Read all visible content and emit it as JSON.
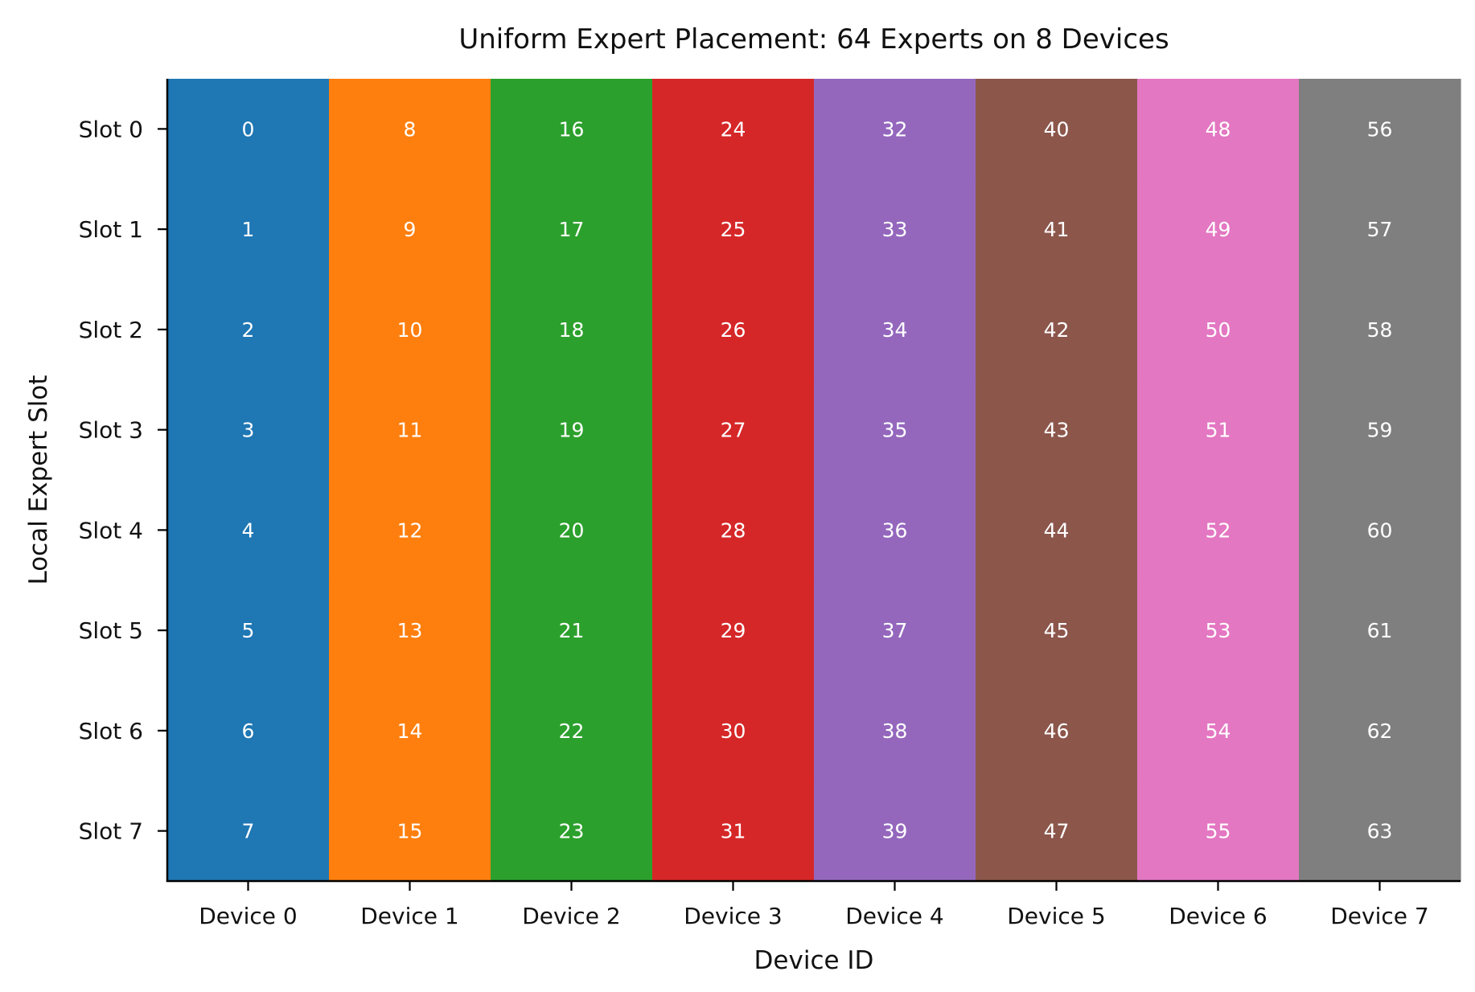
{
  "chart_data": {
    "type": "heatmap",
    "title": "Uniform Expert Placement: 64 Experts on 8 Devices",
    "xlabel": "Device ID",
    "ylabel": "Local Expert Slot",
    "x_categories": [
      "Device 0",
      "Device 1",
      "Device 2",
      "Device 3",
      "Device 4",
      "Device 5",
      "Device 6",
      "Device 7"
    ],
    "y_categories": [
      "Slot 0",
      "Slot 1",
      "Slot 2",
      "Slot 3",
      "Slot 4",
      "Slot 5",
      "Slot 6",
      "Slot 7"
    ],
    "column_colors": [
      "#1f77b4",
      "#ff7f0e",
      "#2ca02c",
      "#d62728",
      "#9467bd",
      "#8c564b",
      "#e377c2",
      "#7f7f7f"
    ],
    "values": [
      [
        0,
        8,
        16,
        24,
        32,
        40,
        48,
        56
      ],
      [
        1,
        9,
        17,
        25,
        33,
        41,
        49,
        57
      ],
      [
        2,
        10,
        18,
        26,
        34,
        42,
        50,
        58
      ],
      [
        3,
        11,
        19,
        27,
        35,
        43,
        51,
        59
      ],
      [
        4,
        12,
        20,
        28,
        36,
        44,
        52,
        60
      ],
      [
        5,
        13,
        21,
        29,
        37,
        45,
        53,
        61
      ],
      [
        6,
        14,
        22,
        30,
        38,
        46,
        54,
        62
      ],
      [
        7,
        15,
        23,
        31,
        39,
        47,
        55,
        63
      ]
    ],
    "grid": false,
    "legend": "none"
  }
}
